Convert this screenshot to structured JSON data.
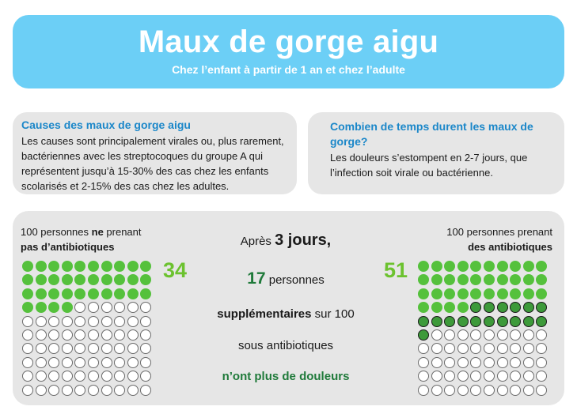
{
  "header": {
    "title": "Maux de gorge aigu",
    "subtitle": "Chez l’enfant à partir de 1 an et chez l’adulte"
  },
  "causes": {
    "title": "Causes des maux de gorge aigu",
    "text": "Les causes sont principalement virales ou, plus rarement, bactériennes avec les streptocoques du groupe A qui représentent jusqu’à 15-30% des cas chez les enfants scolarisés et 2-15% des cas chez les adultes."
  },
  "duree": {
    "title": "Combien de temps durent les maux de gorge?",
    "text": "Les douleurs s’estompent en 2-7 jours, que l’infection soit virale ou bactérienne."
  },
  "left_group": {
    "label_pre": "100 personnes ",
    "label_bold": "ne",
    "label_post": " prenant",
    "label_line2": "pas d’antibiotiques",
    "number": "34",
    "total": 100,
    "relieved": 34
  },
  "right_group": {
    "label_line1": "100 personnes prenant",
    "label_line2": "des antibiotiques",
    "number": "51",
    "total": 100,
    "relieved_baseline": 34,
    "relieved_extra": 17
  },
  "center": {
    "l1_pre": "Après ",
    "l1_big": "3 jours,",
    "l2_num": "17",
    "l2_text": " personnes",
    "l3_bold": "supplémentaires",
    "l3_text": " sur 100",
    "l4": "sous antibiotiques",
    "l5": "n’ont plus de douleurs"
  },
  "colors": {
    "header_bg": "#6ccff6",
    "card_bg": "#e6e6e6",
    "title_blue": "#1b87c9",
    "dot_green": "#55c13c",
    "dot_dark": "#3d9a3a",
    "number_green": "#6cc22f",
    "text_dark_green": "#1f7a3a"
  }
}
